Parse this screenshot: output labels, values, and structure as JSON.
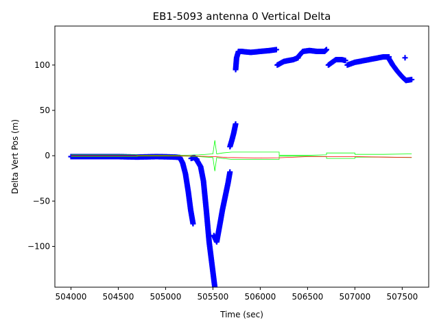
{
  "chart_data": {
    "type": "scatter",
    "title": "EB1-5093 antenna 0 Vertical Delta",
    "xlabel": "Time (sec)",
    "ylabel": "Delta Vert Pos (m)",
    "xlim": [
      503830,
      507780
    ],
    "ylim": [
      -145,
      143
    ],
    "xticks": [
      504000,
      504500,
      505000,
      505500,
      506000,
      506500,
      507000,
      507500
    ],
    "xtick_labels": [
      "504000",
      "504500",
      "505000",
      "505500",
      "506000",
      "506500",
      "507000",
      "507500"
    ],
    "yticks": [
      -100,
      -50,
      0,
      50,
      100
    ],
    "ytick_labels": [
      "−100",
      "−50",
      "0",
      "50",
      "100"
    ],
    "grid": false,
    "series": [
      {
        "style": "marker-plus",
        "color": "#0000ff",
        "segments": [
          [
            [
              504000,
              -1
            ],
            [
              504500,
              -1
            ],
            [
              504700,
              -1.5
            ],
            [
              504900,
              -1
            ],
            [
              505000,
              -1.2
            ],
            [
              505100,
              -1.5
            ],
            [
              505150,
              -2
            ]
          ],
          [
            [
              505150,
              -2
            ],
            [
              505180,
              -8
            ],
            [
              505210,
              -20
            ],
            [
              505240,
              -40
            ],
            [
              505265,
              -60
            ],
            [
              505290,
              -75
            ]
          ],
          [
            [
              505270,
              -3
            ],
            [
              505300,
              -2
            ],
            [
              505330,
              -4
            ]
          ],
          [
            [
              505330,
              -5
            ],
            [
              505370,
              -12
            ],
            [
              505400,
              -28
            ],
            [
              505430,
              -60
            ],
            [
              505460,
              -95
            ],
            [
              505490,
              -120
            ],
            [
              505520,
              -145
            ]
          ],
          [
            [
              505510,
              -88
            ],
            [
              505540,
              -95
            ],
            [
              505580,
              -72
            ],
            [
              505600,
              -60
            ],
            [
              505620,
              -50
            ],
            [
              505660,
              -30
            ],
            [
              505680,
              -18
            ]
          ],
          [
            [
              505680,
              10
            ],
            [
              505700,
              17
            ],
            [
              505720,
              25
            ],
            [
              505740,
              35
            ]
          ],
          [
            [
              505740,
              95
            ],
            [
              505750,
              108
            ],
            [
              505770,
              115
            ],
            [
              505800,
              115
            ],
            [
              505900,
              114
            ],
            [
              506000,
              115
            ],
            [
              506100,
              116
            ],
            [
              506170,
              117
            ]
          ],
          [
            [
              506180,
              100
            ],
            [
              506250,
              104
            ],
            [
              506350,
              106
            ],
            [
              506400,
              108
            ]
          ],
          [
            [
              506400,
              109
            ],
            [
              506450,
              115
            ],
            [
              506520,
              116
            ],
            [
              506600,
              115
            ],
            [
              506680,
              115
            ],
            [
              506700,
              117
            ]
          ],
          [
            [
              506720,
              100
            ],
            [
              506800,
              106
            ],
            [
              506860,
              106
            ],
            [
              506900,
              105
            ]
          ],
          [
            [
              506920,
              100
            ],
            [
              507000,
              103
            ],
            [
              507100,
              105
            ],
            [
              507200,
              107
            ],
            [
              507300,
              109
            ],
            [
              507360,
              109
            ]
          ],
          [
            [
              507360,
              107
            ],
            [
              507400,
              100
            ],
            [
              507450,
              93
            ],
            [
              507500,
              87
            ],
            [
              507540,
              83
            ],
            [
              507600,
              84
            ]
          ],
          [
            [
              507530,
              108
            ]
          ]
        ]
      },
      {
        "style": "line",
        "color": "#00ff00",
        "segments": [
          [
            [
              504000,
              1
            ],
            [
              504700,
              1
            ],
            [
              504700,
              0.5
            ],
            [
              505000,
              0.5
            ],
            [
              505200,
              0.5
            ],
            [
              505350,
              1
            ],
            [
              505500,
              2
            ],
            [
              505520,
              17
            ],
            [
              505540,
              2
            ],
            [
              505600,
              3
            ],
            [
              505700,
              4
            ],
            [
              506200,
              4
            ],
            [
              506200,
              0.5
            ],
            [
              506400,
              0.5
            ],
            [
              506500,
              0.5
            ],
            [
              506700,
              1
            ],
            [
              506700,
              3
            ],
            [
              507000,
              3
            ],
            [
              507000,
              1.5
            ],
            [
              507300,
              1.5
            ],
            [
              507600,
              2
            ]
          ],
          [
            [
              504000,
              -1
            ],
            [
              504700,
              -1
            ],
            [
              504700,
              -0.5
            ],
            [
              505000,
              -0.5
            ],
            [
              505200,
              -0.5
            ],
            [
              505350,
              -1
            ],
            [
              505500,
              -2
            ],
            [
              505520,
              -17
            ],
            [
              505540,
              -2
            ],
            [
              505600,
              -3
            ],
            [
              505700,
              -4
            ],
            [
              506200,
              -4
            ],
            [
              506200,
              -0.5
            ],
            [
              506400,
              -0.5
            ],
            [
              506500,
              -0.5
            ],
            [
              506700,
              -1
            ],
            [
              506700,
              -3
            ],
            [
              507000,
              -3
            ],
            [
              507000,
              -1.5
            ],
            [
              507300,
              -1.5
            ],
            [
              507600,
              -2
            ]
          ]
        ]
      },
      {
        "style": "line",
        "color": "#ff0000",
        "segments": [
          [
            [
              504000,
              0
            ],
            [
              505000,
              0
            ],
            [
              505300,
              -0.3
            ],
            [
              505520,
              -1
            ],
            [
              505650,
              -2
            ],
            [
              506000,
              -2.5
            ],
            [
              506200,
              -2.2
            ],
            [
              506500,
              -1
            ],
            [
              507000,
              -1
            ],
            [
              507300,
              -1.5
            ],
            [
              507600,
              -1.8
            ]
          ]
        ]
      }
    ]
  }
}
